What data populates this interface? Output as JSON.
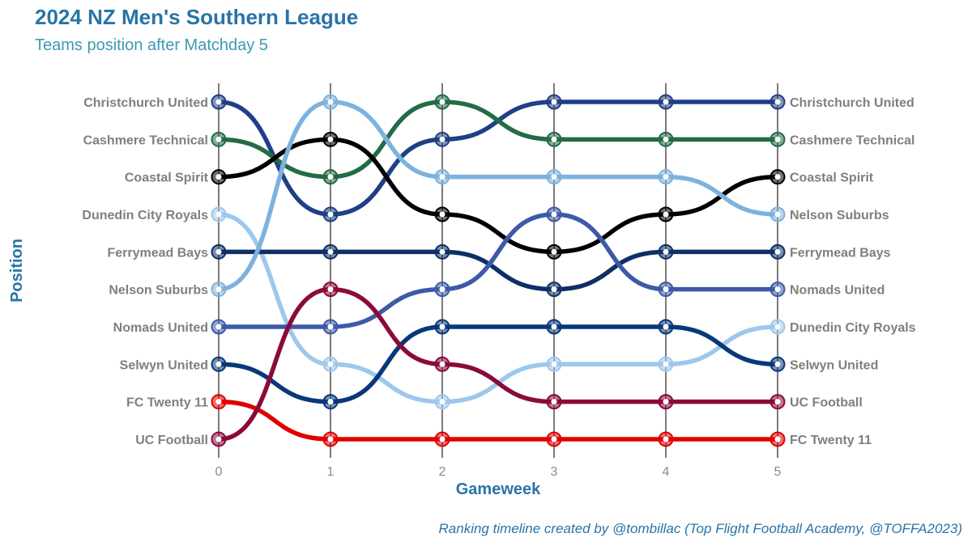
{
  "title": "2024 NZ Men's Southern League",
  "subtitle": "Teams position after Matchday 5",
  "caption": "Ranking timeline created by @tombillac (Top Flight Football Academy, @TOFFA2023)",
  "chart_data": {
    "type": "line",
    "chart_style": "bump",
    "xlabel": "Gameweek",
    "ylabel": "Position",
    "x": [
      0,
      1,
      2,
      3,
      4,
      5
    ],
    "x_tick_labels": [
      "0",
      "1",
      "2",
      "3",
      "4",
      "5"
    ],
    "y_reversed": true,
    "ylim": [
      1,
      10
    ],
    "grid": "vertical",
    "left_labels": [
      "Christchurch United",
      "Cashmere Technical",
      "Coastal Spirit",
      "Dunedin City Royals",
      "Ferrymead Bays",
      "Nelson Suburbs",
      "Nomads United",
      "Selwyn United",
      "FC Twenty 11",
      "UC Football"
    ],
    "right_labels": [
      "Christchurch United",
      "Cashmere Technical",
      "Coastal Spirit",
      "Nelson Suburbs",
      "Ferrymead Bays",
      "Nomads United",
      "Dunedin City Royals",
      "Selwyn United",
      "UC Football",
      "FC Twenty 11"
    ],
    "series": [
      {
        "name": "Christchurch United",
        "values": [
          1,
          4,
          2,
          1,
          1,
          1
        ],
        "color": "#1F3F86"
      },
      {
        "name": "Cashmere Technical",
        "values": [
          2,
          3,
          1,
          2,
          2,
          2
        ],
        "color": "#236B45"
      },
      {
        "name": "Coastal Spirit",
        "values": [
          3,
          2,
          4,
          5,
          4,
          3
        ],
        "color": "#000000"
      },
      {
        "name": "Dunedin City Royals",
        "values": [
          4,
          8,
          9,
          8,
          8,
          7
        ],
        "color": "#9DC8EE"
      },
      {
        "name": "Ferrymead Bays",
        "values": [
          5,
          5,
          5,
          6,
          5,
          5
        ],
        "color": "#0E2F66"
      },
      {
        "name": "Nelson Suburbs",
        "values": [
          6,
          1,
          3,
          3,
          3,
          4
        ],
        "color": "#7DB2DE"
      },
      {
        "name": "Nomads United",
        "values": [
          7,
          7,
          6,
          4,
          6,
          6
        ],
        "color": "#3D5AA8"
      },
      {
        "name": "Selwyn United",
        "values": [
          8,
          9,
          7,
          7,
          7,
          8
        ],
        "color": "#08387A"
      },
      {
        "name": "FC Twenty 11",
        "values": [
          9,
          10,
          10,
          10,
          10,
          10
        ],
        "color": "#E00000"
      },
      {
        "name": "UC Football",
        "values": [
          10,
          6,
          8,
          9,
          9,
          9
        ],
        "color": "#8A0A3C"
      }
    ]
  }
}
